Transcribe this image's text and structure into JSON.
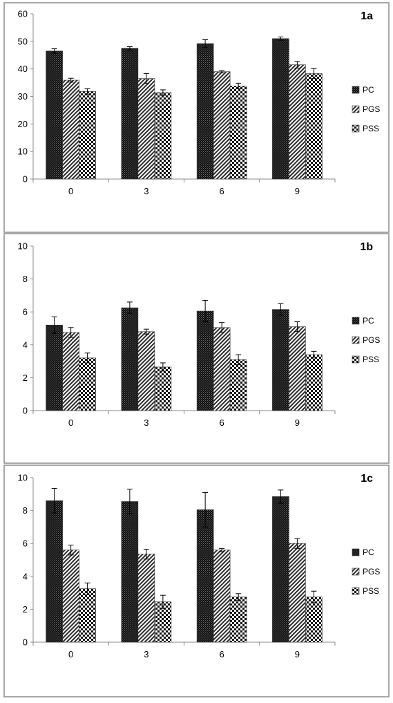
{
  "chart_data": [
    {
      "type": "bar",
      "panel_label": "1a",
      "categories": [
        "0",
        "3",
        "6",
        "9"
      ],
      "ylim": [
        0,
        60
      ],
      "yticks": [
        0,
        10,
        20,
        30,
        40,
        50,
        60
      ],
      "grid": false,
      "legend_position": "right",
      "series": [
        {
          "name": "PC",
          "values": [
            46.5,
            47.5,
            49.2,
            51.0
          ],
          "errors": [
            0.8,
            0.6,
            1.4,
            0.6
          ]
        },
        {
          "name": "PGS",
          "values": [
            35.9,
            36.5,
            39.0,
            41.5
          ],
          "errors": [
            0.7,
            1.8,
            0.4,
            1.2
          ]
        },
        {
          "name": "PSS",
          "values": [
            31.8,
            31.4,
            33.8,
            38.3
          ],
          "errors": [
            1.0,
            1.0,
            1.0,
            1.8
          ]
        }
      ]
    },
    {
      "type": "bar",
      "panel_label": "1b",
      "categories": [
        "0",
        "3",
        "6",
        "9"
      ],
      "ylim": [
        0,
        10
      ],
      "yticks": [
        0,
        2,
        4,
        6,
        8,
        10
      ],
      "grid": false,
      "legend_position": "right",
      "series": [
        {
          "name": "PC",
          "values": [
            5.2,
            6.25,
            6.05,
            6.15
          ],
          "errors": [
            0.5,
            0.35,
            0.65,
            0.35
          ]
        },
        {
          "name": "PGS",
          "values": [
            4.75,
            4.8,
            5.05,
            5.1
          ],
          "errors": [
            0.3,
            0.15,
            0.3,
            0.3
          ]
        },
        {
          "name": "PSS",
          "values": [
            3.2,
            2.65,
            3.1,
            3.4
          ],
          "errors": [
            0.3,
            0.25,
            0.3,
            0.2
          ]
        }
      ]
    },
    {
      "type": "bar",
      "panel_label": "1c",
      "categories": [
        "0",
        "3",
        "6",
        "9"
      ],
      "ylim": [
        0,
        10
      ],
      "yticks": [
        0,
        2,
        4,
        6,
        8,
        10
      ],
      "grid": false,
      "legend_position": "right",
      "series": [
        {
          "name": "PC",
          "values": [
            8.6,
            8.55,
            8.05,
            8.85
          ],
          "errors": [
            0.75,
            0.75,
            1.05,
            0.4
          ]
        },
        {
          "name": "PGS",
          "values": [
            5.6,
            5.35,
            5.6,
            6.0
          ],
          "errors": [
            0.3,
            0.3,
            0.1,
            0.3
          ]
        },
        {
          "name": "PSS",
          "values": [
            3.25,
            2.45,
            2.75,
            2.75
          ],
          "errors": [
            0.35,
            0.4,
            0.2,
            0.35
          ]
        }
      ]
    }
  ],
  "colors": {
    "frame": "#8a8a8a",
    "axis": "#888888",
    "bar_fill_dark": "#1a1a1a",
    "bar_pattern_light": "#ffffff",
    "error_bar": "#000000"
  }
}
